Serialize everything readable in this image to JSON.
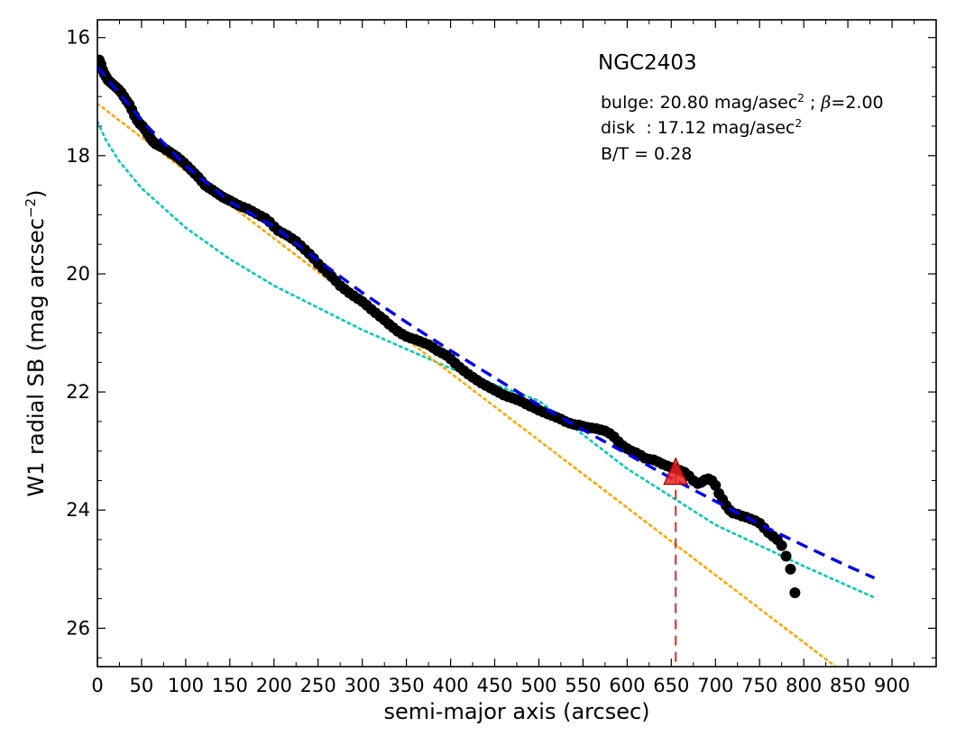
{
  "chart_data": {
    "type": "scatter",
    "xlabel": "semi-major axis (arcsec)",
    "ylabel": "W1 radial SB (mag arcsec",
    "ylabel_sup": "−2",
    "ylabel_close": ")",
    "xlim": [
      0,
      950
    ],
    "ylim": [
      26.65,
      15.7
    ],
    "y_inverted": true,
    "x_ticks": [
      0,
      50,
      100,
      150,
      200,
      250,
      300,
      350,
      400,
      450,
      500,
      550,
      600,
      650,
      700,
      750,
      800,
      850,
      900
    ],
    "y_ticks": [
      16,
      18,
      20,
      22,
      24,
      26
    ],
    "grid": false,
    "annotations": {
      "galaxy": "NGC2403",
      "bulge_pre": "bulge: 20.80 mag/asec",
      "bulge_sup": "2",
      "bulge_post": " ; ",
      "bulge_beta": "β",
      "bulge_beta_val": "=2.00",
      "disk_pre": "disk  : 17.12 mag/asec",
      "disk_sup": "2",
      "bt": "B/T = 0.28"
    },
    "series": [
      {
        "kind": "observed_profile",
        "color": "#000000",
        "points": [
          [
            2,
            16.38
          ],
          [
            4,
            16.45
          ],
          [
            6,
            16.55
          ],
          [
            8,
            16.62
          ],
          [
            10,
            16.67
          ],
          [
            12,
            16.72
          ],
          [
            15,
            16.76
          ],
          [
            18,
            16.8
          ],
          [
            21,
            16.84
          ],
          [
            24,
            16.88
          ],
          [
            27,
            16.93
          ],
          [
            30,
            17.0
          ],
          [
            33,
            17.07
          ],
          [
            36,
            17.13
          ],
          [
            39,
            17.22
          ],
          [
            42,
            17.32
          ],
          [
            45,
            17.4
          ],
          [
            48,
            17.46
          ],
          [
            51,
            17.5
          ],
          [
            54,
            17.56
          ],
          [
            57,
            17.63
          ],
          [
            60,
            17.7
          ],
          [
            63,
            17.76
          ],
          [
            66,
            17.8
          ],
          [
            70,
            17.83
          ],
          [
            74,
            17.86
          ],
          [
            78,
            17.9
          ],
          [
            82,
            17.94
          ],
          [
            86,
            17.98
          ],
          [
            90,
            18.02
          ],
          [
            94,
            18.07
          ],
          [
            98,
            18.12
          ],
          [
            102,
            18.18
          ],
          [
            106,
            18.24
          ],
          [
            110,
            18.3
          ],
          [
            114,
            18.36
          ],
          [
            118,
            18.43
          ],
          [
            122,
            18.5
          ],
          [
            126,
            18.54
          ],
          [
            130,
            18.58
          ],
          [
            134,
            18.62
          ],
          [
            138,
            18.66
          ],
          [
            142,
            18.7
          ],
          [
            146,
            18.73
          ],
          [
            150,
            18.76
          ],
          [
            155,
            18.8
          ],
          [
            160,
            18.84
          ],
          [
            165,
            18.87
          ],
          [
            170,
            18.9
          ],
          [
            175,
            18.94
          ],
          [
            180,
            18.98
          ],
          [
            185,
            19.02
          ],
          [
            190,
            19.06
          ],
          [
            195,
            19.12
          ],
          [
            200,
            19.2
          ],
          [
            205,
            19.27
          ],
          [
            210,
            19.31
          ],
          [
            215,
            19.35
          ],
          [
            220,
            19.4
          ],
          [
            225,
            19.45
          ],
          [
            230,
            19.52
          ],
          [
            235,
            19.59
          ],
          [
            240,
            19.66
          ],
          [
            245,
            19.74
          ],
          [
            250,
            19.83
          ],
          [
            255,
            19.9
          ],
          [
            260,
            19.97
          ],
          [
            265,
            20.04
          ],
          [
            270,
            20.12
          ],
          [
            275,
            20.2
          ],
          [
            280,
            20.26
          ],
          [
            285,
            20.32
          ],
          [
            290,
            20.37
          ],
          [
            295,
            20.42
          ],
          [
            300,
            20.47
          ],
          [
            305,
            20.53
          ],
          [
            310,
            20.6
          ],
          [
            315,
            20.66
          ],
          [
            320,
            20.72
          ],
          [
            325,
            20.78
          ],
          [
            330,
            20.85
          ],
          [
            335,
            20.91
          ],
          [
            340,
            20.97
          ],
          [
            345,
            21.02
          ],
          [
            350,
            21.06
          ],
          [
            355,
            21.09
          ],
          [
            360,
            21.11
          ],
          [
            365,
            21.14
          ],
          [
            370,
            21.17
          ],
          [
            375,
            21.2
          ],
          [
            380,
            21.25
          ],
          [
            385,
            21.3
          ],
          [
            390,
            21.34
          ],
          [
            395,
            21.38
          ],
          [
            400,
            21.44
          ],
          [
            405,
            21.51
          ],
          [
            410,
            21.58
          ],
          [
            415,
            21.64
          ],
          [
            420,
            21.7
          ],
          [
            425,
            21.75
          ],
          [
            430,
            21.8
          ],
          [
            435,
            21.85
          ],
          [
            440,
            21.89
          ],
          [
            445,
            21.93
          ],
          [
            450,
            21.97
          ],
          [
            455,
            22.01
          ],
          [
            460,
            22.05
          ],
          [
            465,
            22.08
          ],
          [
            470,
            22.1
          ],
          [
            475,
            22.13
          ],
          [
            480,
            22.16
          ],
          [
            485,
            22.2
          ],
          [
            490,
            22.24
          ],
          [
            495,
            22.27
          ],
          [
            500,
            22.31
          ],
          [
            505,
            22.34
          ],
          [
            510,
            22.37
          ],
          [
            515,
            22.4
          ],
          [
            520,
            22.43
          ],
          [
            525,
            22.46
          ],
          [
            530,
            22.5
          ],
          [
            535,
            22.53
          ],
          [
            540,
            22.55
          ],
          [
            545,
            22.56
          ],
          [
            550,
            22.58
          ],
          [
            555,
            22.6
          ],
          [
            560,
            22.61
          ],
          [
            565,
            22.62
          ],
          [
            570,
            22.64
          ],
          [
            575,
            22.66
          ],
          [
            580,
            22.7
          ],
          [
            585,
            22.76
          ],
          [
            590,
            22.84
          ],
          [
            595,
            22.91
          ],
          [
            600,
            22.96
          ],
          [
            605,
            23.0
          ],
          [
            610,
            23.03
          ],
          [
            615,
            23.07
          ],
          [
            620,
            23.12
          ],
          [
            625,
            23.14
          ],
          [
            630,
            23.15
          ],
          [
            635,
            23.18
          ],
          [
            640,
            23.22
          ],
          [
            645,
            23.25
          ],
          [
            650,
            23.28
          ],
          [
            655,
            23.3
          ],
          [
            660,
            23.33
          ],
          [
            665,
            23.36
          ],
          [
            670,
            23.42
          ],
          [
            675,
            23.5
          ],
          [
            680,
            23.55
          ],
          [
            684,
            23.53
          ],
          [
            688,
            23.49
          ],
          [
            692,
            23.47
          ],
          [
            696,
            23.5
          ],
          [
            700,
            23.58
          ],
          [
            704,
            23.72
          ],
          [
            708,
            23.82
          ],
          [
            712,
            23.92
          ],
          [
            716,
            24.0
          ],
          [
            720,
            24.05
          ],
          [
            725,
            24.07
          ],
          [
            730,
            24.1
          ],
          [
            735,
            24.12
          ],
          [
            740,
            24.15
          ],
          [
            745,
            24.18
          ],
          [
            750,
            24.22
          ],
          [
            755,
            24.3
          ],
          [
            760,
            24.38
          ],
          [
            765,
            24.44
          ],
          [
            770,
            24.5
          ],
          [
            775,
            24.6
          ],
          [
            780,
            24.78
          ],
          [
            785,
            25.0
          ],
          [
            790,
            25.4
          ]
        ]
      },
      {
        "kind": "total_fit",
        "style": "dashed",
        "color": "#0000ee",
        "points": [
          [
            0,
            16.5
          ],
          [
            50,
            17.4
          ],
          [
            100,
            18.17
          ],
          [
            150,
            18.78
          ],
          [
            200,
            19.2
          ],
          [
            250,
            19.77
          ],
          [
            300,
            20.32
          ],
          [
            350,
            20.82
          ],
          [
            400,
            21.3
          ],
          [
            450,
            21.76
          ],
          [
            500,
            22.22
          ],
          [
            550,
            22.64
          ],
          [
            600,
            23.05
          ],
          [
            650,
            23.46
          ],
          [
            700,
            23.85
          ],
          [
            750,
            24.24
          ],
          [
            800,
            24.6
          ],
          [
            850,
            24.95
          ],
          [
            880,
            25.15
          ]
        ]
      },
      {
        "kind": "disk_component",
        "style": "dotted",
        "color": "#ffa500",
        "points": [
          [
            0,
            17.12
          ],
          [
            100,
            18.26
          ],
          [
            200,
            19.4
          ],
          [
            300,
            20.54
          ],
          [
            400,
            21.68
          ],
          [
            500,
            22.82
          ],
          [
            600,
            23.96
          ],
          [
            700,
            25.1
          ],
          [
            800,
            26.24
          ],
          [
            880,
            27.15
          ]
        ]
      },
      {
        "kind": "bulge_component",
        "style": "dotted",
        "color": "#00c8b4",
        "points": [
          [
            0,
            17.42
          ],
          [
            10,
            17.75
          ],
          [
            25,
            18.1
          ],
          [
            50,
            18.55
          ],
          [
            100,
            19.22
          ],
          [
            150,
            19.75
          ],
          [
            200,
            20.2
          ],
          [
            300,
            20.95
          ],
          [
            400,
            21.6
          ],
          [
            500,
            22.15
          ],
          [
            600,
            23.3
          ],
          [
            700,
            24.25
          ],
          [
            800,
            24.95
          ],
          [
            880,
            25.48
          ]
        ]
      },
      {
        "kind": "marker",
        "shape": "triangle",
        "color": "#ee2222",
        "points": [
          [
            655,
            23.38
          ]
        ]
      },
      {
        "kind": "vertical_marker",
        "style": "dashed",
        "color": "#ee2222",
        "points": [
          [
            655,
            23.38
          ],
          [
            655,
            26.65
          ]
        ]
      }
    ]
  }
}
